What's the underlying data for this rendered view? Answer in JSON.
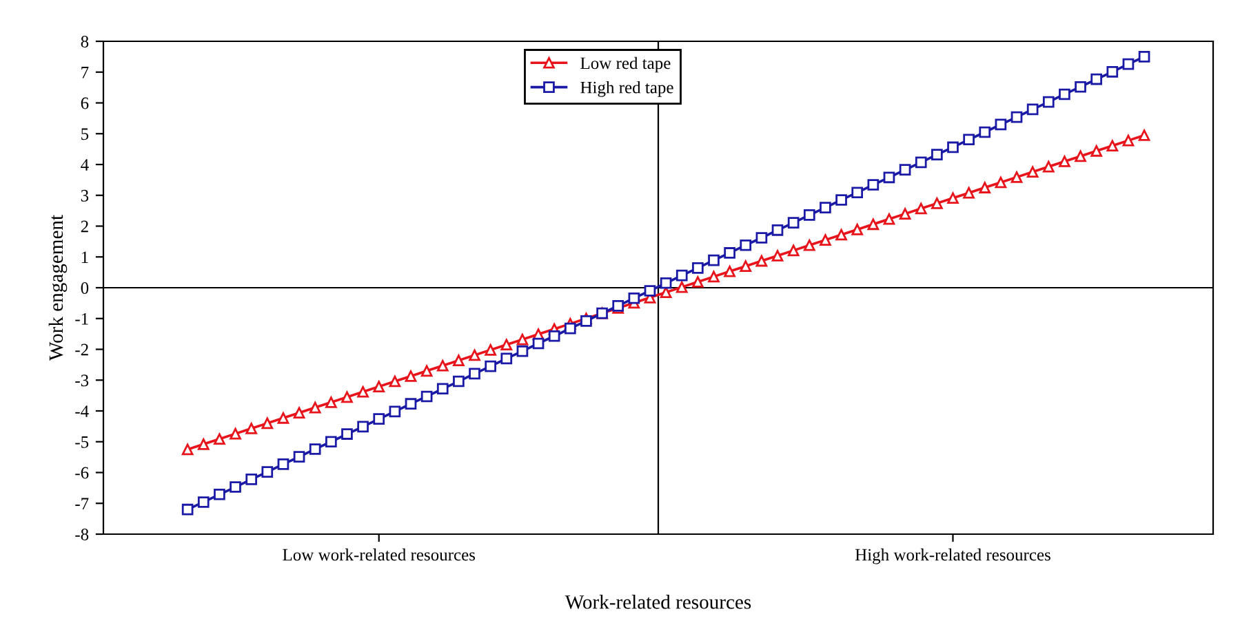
{
  "chart_data": {
    "type": "line",
    "xlabel": "Work-related resources",
    "ylabel": "Work engagement",
    "categories": [
      null,
      null,
      null,
      null,
      null,
      null,
      null,
      null,
      null,
      null,
      null,
      null,
      "Low work-related resources",
      null,
      null,
      null,
      null,
      null,
      null,
      null,
      null,
      null,
      null,
      null,
      null,
      null,
      null,
      null,
      null,
      null,
      null,
      null,
      null,
      null,
      null,
      null,
      null,
      null,
      null,
      null,
      null,
      null,
      null,
      null,
      null,
      null,
      null,
      null,
      "High work-related resources",
      null,
      null,
      null,
      null,
      null,
      null,
      null,
      null,
      null,
      null,
      null,
      null
    ],
    "ylim": [
      -8,
      8
    ],
    "yticks": [
      -8,
      -7,
      -6,
      -5,
      -4,
      -3,
      -2,
      -1,
      0,
      1,
      2,
      3,
      4,
      5,
      6,
      7,
      8
    ],
    "series": [
      {
        "name": "Low red tape",
        "color": "#e8141c",
        "marker": "triangle",
        "values": [
          -5.25,
          -5.08,
          -4.91,
          -4.74,
          -4.57,
          -4.4,
          -4.23,
          -4.06,
          -3.89,
          -3.72,
          -3.55,
          -3.38,
          -3.21,
          -3.04,
          -2.87,
          -2.7,
          -2.53,
          -2.36,
          -2.19,
          -2.02,
          -1.85,
          -1.68,
          -1.51,
          -1.34,
          -1.17,
          -1.0,
          -0.83,
          -0.66,
          -0.49,
          -0.32,
          -0.15,
          0.02,
          0.19,
          0.36,
          0.53,
          0.7,
          0.87,
          1.04,
          1.21,
          1.38,
          1.55,
          1.72,
          1.89,
          2.06,
          2.23,
          2.4,
          2.57,
          2.74,
          2.91,
          3.08,
          3.25,
          3.42,
          3.59,
          3.76,
          3.93,
          4.1,
          4.27,
          4.44,
          4.61,
          4.78,
          4.95
        ]
      },
      {
        "name": "High red tape",
        "color": "#1a1aa6",
        "marker": "square",
        "values": [
          -7.2,
          -6.96,
          -6.71,
          -6.47,
          -6.22,
          -5.98,
          -5.73,
          -5.49,
          -5.24,
          -5.0,
          -4.75,
          -4.51,
          -4.26,
          -4.02,
          -3.77,
          -3.53,
          -3.28,
          -3.04,
          -2.79,
          -2.55,
          -2.3,
          -2.06,
          -1.81,
          -1.57,
          -1.32,
          -1.08,
          -0.83,
          -0.59,
          -0.34,
          -0.1,
          0.15,
          0.4,
          0.64,
          0.89,
          1.13,
          1.38,
          1.62,
          1.87,
          2.11,
          2.36,
          2.6,
          2.85,
          3.09,
          3.34,
          3.58,
          3.83,
          4.07,
          4.32,
          4.56,
          4.81,
          5.05,
          5.3,
          5.54,
          5.79,
          6.03,
          6.28,
          6.52,
          6.77,
          7.01,
          7.26,
          7.5
        ]
      }
    ],
    "ref_lines": [
      {
        "axis": "y",
        "value": 0,
        "color": "#000000"
      }
    ],
    "legend": "top",
    "grid": false,
    "line_style": "solid"
  }
}
